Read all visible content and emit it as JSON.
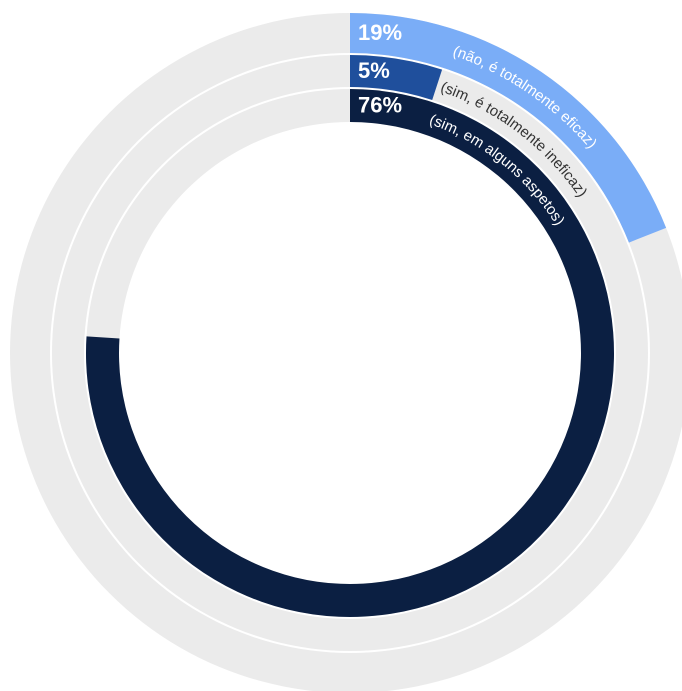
{
  "chart_data": {
    "type": "radial_bar",
    "categories": [
      "(não, é totalmente eficaz)",
      "(sim, é totalmente ineficaz)",
      "(sim, em alguns aspetos)"
    ],
    "values": [
      19,
      5,
      76
    ],
    "value_labels": [
      "19%",
      "5%",
      "76%"
    ],
    "colors": [
      "#7aadf7",
      "#1f4f9c",
      "#0b1f42"
    ],
    "category_text_colors": [
      "#ffffff",
      "#333333",
      "#ffffff"
    ],
    "track_color": "#ebebeb",
    "ylim": [
      0,
      100
    ]
  }
}
